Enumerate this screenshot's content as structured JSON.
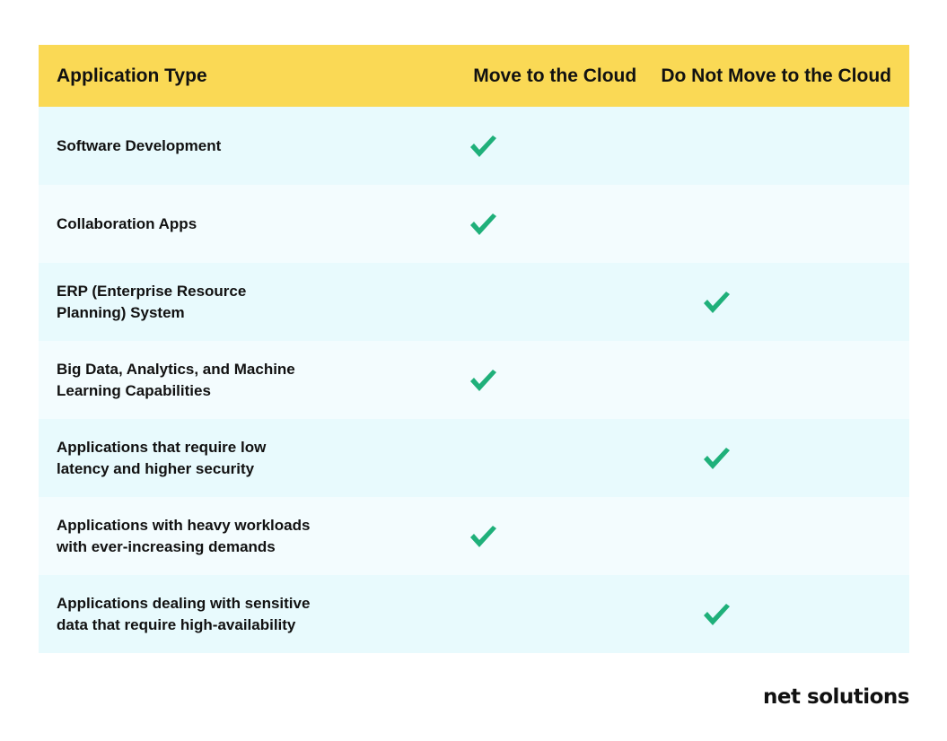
{
  "table": {
    "headers": {
      "type": "Application Type",
      "move": "Move to the Cloud",
      "no_move": "Do Not Move to the Cloud"
    },
    "rows": [
      {
        "label_line1": "Software Development",
        "label_line2": "",
        "move": true,
        "no_move": false
      },
      {
        "label_line1": "Collaboration Apps",
        "label_line2": "",
        "move": true,
        "no_move": false
      },
      {
        "label_line1": "ERP (Enterprise Resource",
        "label_line2": "Planning) System",
        "move": false,
        "no_move": true
      },
      {
        "label_line1": "Big Data, Analytics, and Machine",
        "label_line2": "Learning Capabilities",
        "move": true,
        "no_move": false
      },
      {
        "label_line1": "Applications that require low",
        "label_line2": "latency and higher security",
        "move": false,
        "no_move": true
      },
      {
        "label_line1": "Applications with heavy workloads",
        "label_line2": "with ever-increasing demands",
        "move": true,
        "no_move": false
      },
      {
        "label_line1": "Applications dealing with sensitive",
        "label_line2": "data that require high-availability",
        "move": false,
        "no_move": true
      }
    ]
  },
  "colors": {
    "header_bg": "#fad955",
    "row_bg_a": "#e8fafd",
    "row_bg_b": "#f3fcfe",
    "check": "#1fb07a"
  },
  "icons": {
    "check": "checkmark-icon"
  },
  "logo": {
    "text": "net solutions"
  }
}
